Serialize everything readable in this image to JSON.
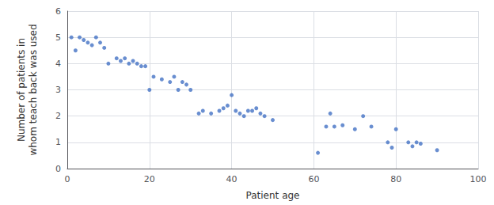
{
  "chart_data": {
    "type": "scatter",
    "xlabel": "Patient age",
    "ylabel": "Number of patients in\nwhom teach back was used",
    "x": [
      1,
      2,
      3,
      4,
      5,
      6,
      7,
      8,
      9,
      10,
      12,
      13,
      14,
      15,
      16,
      17,
      18,
      19,
      20,
      21,
      23,
      25,
      26,
      27,
      28,
      29,
      30,
      32,
      33,
      35,
      37,
      38,
      39,
      40,
      41,
      42,
      43,
      44,
      45,
      46,
      47,
      48,
      50,
      61,
      63,
      64,
      65,
      67,
      70,
      72,
      74,
      78,
      79,
      80,
      83,
      84,
      85,
      86,
      90
    ],
    "values": [
      5.0,
      4.5,
      5.0,
      4.9,
      4.8,
      4.7,
      5.0,
      4.8,
      4.6,
      4.0,
      4.2,
      4.1,
      4.2,
      4.0,
      4.1,
      4.0,
      3.9,
      3.9,
      3.0,
      3.5,
      3.4,
      3.3,
      3.5,
      3.0,
      3.3,
      3.2,
      3.0,
      2.1,
      2.2,
      2.1,
      2.2,
      2.3,
      2.4,
      2.8,
      2.2,
      2.1,
      2.0,
      2.2,
      2.2,
      2.3,
      2.1,
      2.0,
      1.85,
      0.6,
      1.6,
      2.1,
      1.6,
      1.65,
      1.5,
      2.0,
      1.6,
      1.0,
      0.8,
      1.5,
      1.0,
      0.85,
      1.0,
      0.95,
      0.7
    ],
    "color": "#4472C4",
    "xlim": [
      0,
      100
    ],
    "ylim": [
      0,
      6
    ],
    "xticks": [
      0,
      20,
      40,
      60,
      80,
      100
    ],
    "yticks": [
      0,
      1,
      2,
      3,
      4,
      5,
      6
    ],
    "grid": true
  }
}
